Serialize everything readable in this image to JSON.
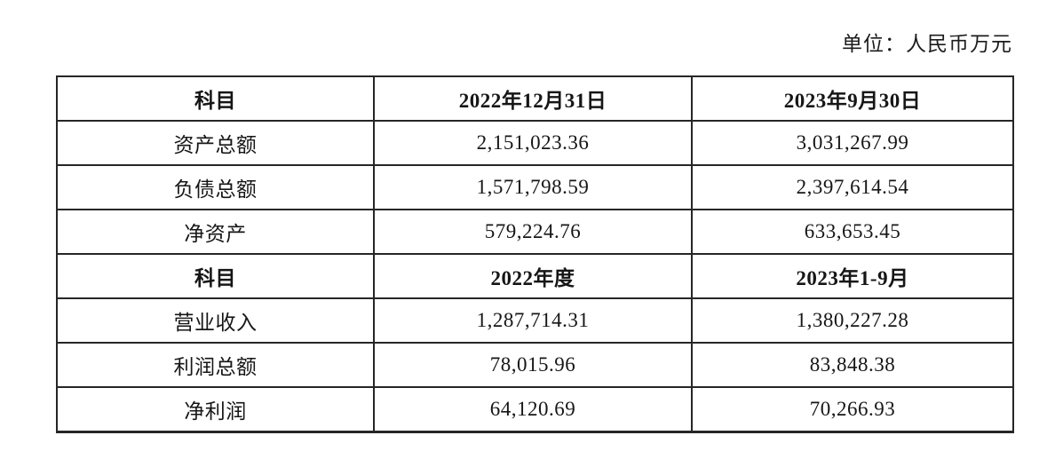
{
  "page": {
    "unit_label": "单位：人民币万元"
  },
  "colors": {
    "background": "#ffffff",
    "text": "#161616",
    "border": "#262626"
  },
  "table": {
    "sections": [
      {
        "header": [
          "科目",
          "2022年12月31日",
          "2023年9月30日"
        ],
        "rows": [
          [
            "资产总额",
            "2,151,023.36",
            "3,031,267.99"
          ],
          [
            "负债总额",
            "1,571,798.59",
            "2,397,614.54"
          ],
          [
            "净资产",
            "579,224.76",
            "633,653.45"
          ]
        ]
      },
      {
        "header": [
          "科目",
          "2022年度",
          "2023年1-9月"
        ],
        "rows": [
          [
            "营业收入",
            "1,287,714.31",
            "1,380,227.28"
          ],
          [
            "利润总额",
            "78,015.96",
            "83,848.38"
          ],
          [
            "净利润",
            "64,120.69",
            "70,266.93"
          ]
        ]
      }
    ]
  }
}
